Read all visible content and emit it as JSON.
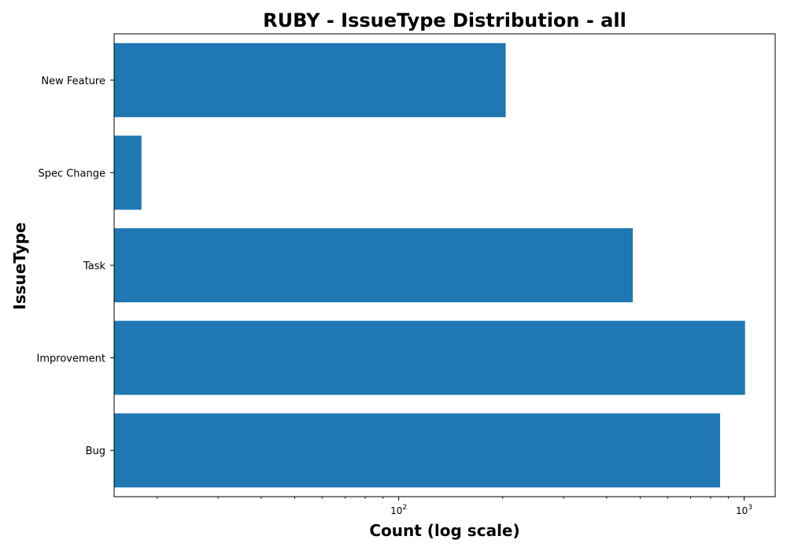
{
  "chart_data": {
    "type": "bar",
    "orientation": "horizontal",
    "title": "RUBY - IssueType Distribution - all",
    "xlabel": "Count (log scale)",
    "ylabel": "IssueType",
    "x_scale": "log",
    "xlim": [
      15,
      1230
    ],
    "x_major_ticks": [
      {
        "value": 100,
        "base": "10",
        "exp": "2"
      },
      {
        "value": 1000,
        "base": "10",
        "exp": "3"
      }
    ],
    "categories": [
      "New Feature",
      "Spec Change",
      "Task",
      "Improvement",
      "Bug"
    ],
    "values": [
      204,
      18,
      476,
      1006,
      852
    ],
    "bar_color": "#1f77b4",
    "grid": false,
    "legend": "none"
  }
}
